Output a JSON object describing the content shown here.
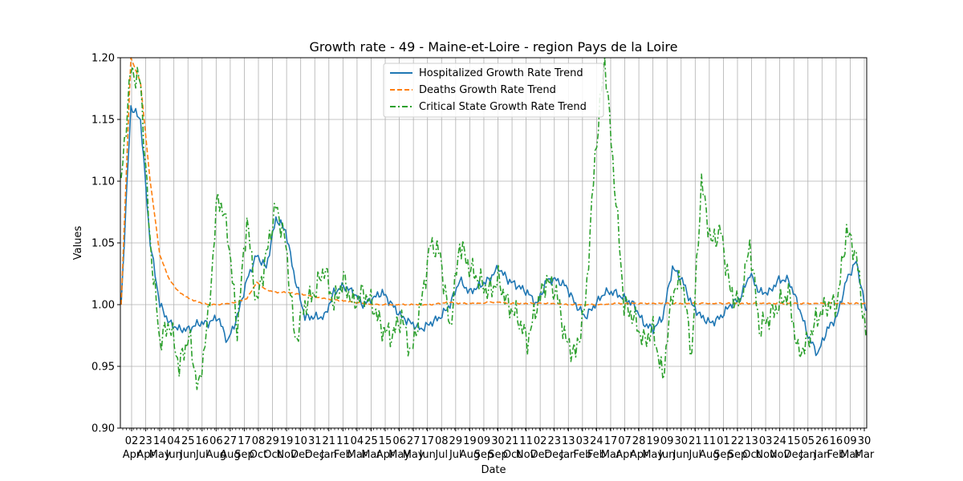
{
  "chart_data": {
    "type": "line",
    "title": "Growth rate - 49 - Maine-et-Loire - region Pays de la Loire",
    "xlabel": "Date",
    "ylabel": "Values",
    "ylim": [
      0.9,
      1.2
    ],
    "yticks": [
      "0.90",
      "0.95",
      "1.00",
      "1.05",
      "1.10",
      "1.15",
      "1.20"
    ],
    "grid": true,
    "legend_position": "top-center",
    "x_day_labels": [
      "02",
      "23",
      "14",
      "04",
      "25",
      "16",
      "06",
      "27",
      "17",
      "08",
      "29",
      "19",
      "10",
      "31",
      "21",
      "11",
      "04",
      "25",
      "15",
      "06",
      "27",
      "17",
      "08",
      "29",
      "19",
      "09",
      "30",
      "21",
      "11",
      "02",
      "23",
      "13",
      "03",
      "24",
      "17",
      "07",
      "28",
      "19",
      "09",
      "30",
      "21",
      "11",
      "01",
      "22",
      "13",
      "03",
      "24",
      "15",
      "05",
      "26",
      "16",
      "09",
      "30"
    ],
    "x_month_labels": [
      "Apr",
      "Apr",
      "May",
      "Jun",
      "Jun",
      "Jul",
      "Aug",
      "Aug",
      "Sep",
      "Oct",
      "Oct",
      "Nov",
      "Dec",
      "Dec",
      "Jan",
      "Feb",
      "Mar",
      "Mar",
      "Apr",
      "May",
      "May",
      "Jun",
      "Jul",
      "Jul",
      "Aug",
      "Sep",
      "Sep",
      "Oct",
      "Nov",
      "Dec",
      "Dec",
      "Jan",
      "Feb",
      "Feb",
      "Mar",
      "Apr",
      "Apr",
      "May",
      "Jun",
      "Jun",
      "Jul",
      "Aug",
      "Sep",
      "Sep",
      "Oct",
      "Nov",
      "Nov",
      "Dec",
      "Jan",
      "Jan",
      "Feb",
      "Mar",
      "Mar"
    ],
    "series": [
      {
        "name": "Hospitalized Growth Rate Trend",
        "color": "#1f77b4",
        "dash": "solid",
        "values": [
          1.0,
          1.16,
          1.15,
          1.05,
          1.0,
          0.985,
          0.98,
          0.98,
          0.985,
          0.985,
          0.99,
          0.97,
          0.99,
          1.02,
          1.04,
          1.03,
          1.07,
          1.06,
          1.02,
          0.99,
          0.99,
          0.99,
          1.01,
          1.015,
          1.01,
          1.0,
          1.005,
          1.01,
          1.0,
          0.99,
          0.985,
          0.98,
          0.985,
          0.99,
          1.0,
          1.02,
          1.01,
          1.015,
          1.02,
          1.03,
          1.02,
          1.015,
          1.01,
          1.0,
          1.02,
          1.02,
          1.015,
          1.0,
          0.99,
          1.0,
          1.01,
          1.01,
          1.005,
          1.0,
          0.985,
          0.98,
          0.99,
          1.03,
          1.02,
          1.0,
          0.99,
          0.985,
          0.99,
          1.0,
          1.005,
          1.025,
          1.01,
          1.01,
          1.02,
          1.02,
          1.0,
          0.975,
          0.96,
          0.98,
          0.99,
          1.02,
          1.035,
          0.995
        ]
      },
      {
        "name": "Deaths Growth Rate Trend",
        "color": "#ff7f0e",
        "dash": "dashed",
        "values": [
          1.0,
          1.2,
          1.18,
          1.1,
          1.04,
          1.02,
          1.01,
          1.005,
          1.002,
          1.0,
          1.0,
          1.001,
          1.002,
          1.005,
          1.018,
          1.012,
          1.01,
          1.01,
          1.009,
          1.008,
          1.006,
          1.005,
          1.004,
          1.003,
          1.002,
          1.001,
          1.0,
          1.0,
          1.0,
          1.0,
          1.0,
          1.0,
          1.0,
          1.001,
          1.002,
          1.001,
          1.001,
          1.001,
          1.002,
          1.002,
          1.001,
          1.001,
          1.001,
          1.001,
          1.001,
          1.001,
          1.0,
          1.0,
          1.0,
          1.0,
          1.0,
          1.001,
          1.001,
          1.001,
          1.001,
          1.001,
          1.001,
          1.001,
          1.001,
          1.001,
          1.001,
          1.001,
          1.001,
          1.001,
          1.001,
          1.001,
          1.001,
          1.001,
          1.001,
          1.001,
          1.001,
          1.001,
          1.001,
          1.001,
          1.001,
          1.001,
          1.001,
          1.001
        ]
      },
      {
        "name": "Critical State Growth Rate Trend",
        "color": "#2ca02c",
        "dash": "dashdot",
        "values": [
          1.1,
          1.19,
          1.18,
          1.05,
          0.97,
          0.985,
          0.95,
          0.975,
          0.93,
          0.99,
          1.09,
          1.06,
          0.98,
          1.07,
          1.0,
          1.04,
          1.08,
          1.05,
          0.97,
          1.0,
          1.01,
          1.03,
          1.0,
          1.02,
          1.0,
          1.01,
          1.0,
          0.98,
          0.975,
          0.99,
          0.96,
          1.0,
          1.05,
          1.04,
          0.98,
          1.05,
          1.03,
          1.02,
          1.01,
          1.02,
          1.0,
          0.99,
          0.97,
          1.0,
          1.02,
          1.01,
          0.97,
          0.96,
          1.0,
          1.12,
          1.2,
          1.1,
          1.0,
          0.99,
          0.97,
          0.98,
          0.94,
          1.01,
          1.02,
          0.96,
          1.1,
          1.05,
          1.06,
          1.01,
          1.0,
          1.05,
          0.98,
          0.99,
          1.0,
          1.01,
          0.96,
          0.97,
          0.99,
          1.0,
          1.0,
          1.06,
          1.04,
          0.975
        ]
      }
    ]
  }
}
